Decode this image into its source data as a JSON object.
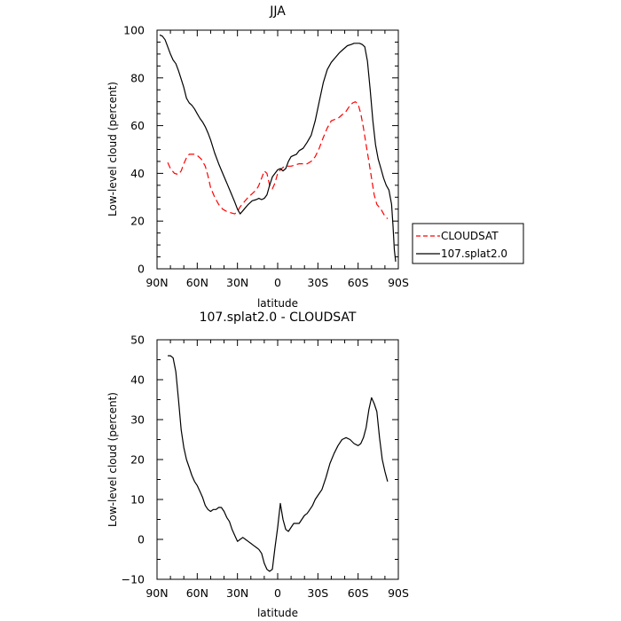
{
  "chart_data": [
    {
      "type": "line",
      "title": "JJA",
      "xlabel": "latitude",
      "ylabel": "Low-level cloud (percent)",
      "xlim": [
        -90,
        90
      ],
      "ylim": [
        0,
        100
      ],
      "x_ticks": [
        -90,
        -60,
        -30,
        0,
        30,
        60,
        90
      ],
      "x_tick_labels": [
        "90N",
        "60N",
        "30N",
        "0",
        "30S",
        "60S",
        "90S"
      ],
      "y_ticks": [
        0,
        20,
        40,
        60,
        80,
        100
      ],
      "y_tick_labels": [
        "0",
        "20",
        "40",
        "60",
        "80",
        "100"
      ],
      "grid": false,
      "legend_position": "right",
      "series": [
        {
          "name": "CLOUDSAT",
          "color": "#ff0000",
          "dash": "dashed",
          "x": [
            -82,
            -80,
            -77,
            -74,
            -72,
            -70,
            -68,
            -66,
            -64,
            -62,
            -60,
            -57,
            -54,
            -52,
            -50,
            -47,
            -44,
            -41,
            -38,
            -35,
            -32,
            -30,
            -28,
            -25,
            -22,
            -19,
            -16,
            -14,
            -12,
            -10,
            -8,
            -6,
            -4,
            -2,
            0,
            2,
            4,
            6,
            8,
            10,
            13,
            16,
            19,
            22,
            25,
            28,
            31,
            34,
            37,
            40,
            42,
            45,
            48,
            51,
            54,
            56,
            58,
            60,
            62,
            64,
            66,
            68,
            70,
            72,
            74,
            77,
            80,
            82
          ],
          "y": [
            44.5,
            42,
            40,
            39.5,
            41,
            44,
            46.5,
            48,
            48,
            48,
            47.5,
            46,
            43,
            39,
            34,
            30,
            27,
            25,
            24,
            23.5,
            23,
            24,
            26,
            28,
            30,
            31.5,
            33,
            35,
            38,
            41,
            40,
            35,
            33.5,
            36,
            40,
            41.5,
            42.5,
            43,
            43,
            43,
            43.5,
            44,
            44,
            44,
            45,
            47,
            50.5,
            55,
            59,
            62,
            62.5,
            63,
            64.5,
            66,
            68.5,
            69.5,
            70,
            69,
            65,
            59,
            52,
            45,
            38,
            31,
            27,
            25,
            22,
            21
          ]
        },
        {
          "name": "107.splat2.0",
          "color": "#000000",
          "dash": "solid",
          "x": [
            -88,
            -86,
            -84,
            -82,
            -80,
            -78,
            -76,
            -74,
            -72,
            -70,
            -68,
            -66,
            -64,
            -62,
            -60,
            -58,
            -56,
            -54,
            -52,
            -50,
            -47,
            -44,
            -41,
            -38,
            -35,
            -32,
            -30,
            -28,
            -25,
            -22,
            -19,
            -16,
            -14,
            -12,
            -10,
            -8,
            -6,
            -4,
            -2,
            0,
            2,
            4,
            6,
            8,
            10,
            12,
            14,
            16,
            19,
            22,
            25,
            28,
            31,
            34,
            37,
            40,
            43,
            46,
            49,
            52,
            55,
            57,
            59,
            61,
            63,
            65,
            67,
            69,
            71,
            73,
            75,
            77,
            79,
            81,
            83,
            85,
            86,
            87,
            88
          ],
          "y": [
            98,
            97.5,
            96,
            93,
            90,
            87.5,
            86,
            83,
            79.5,
            76,
            71.5,
            69.5,
            68.5,
            67,
            65,
            63,
            61.5,
            59.5,
            57,
            54,
            48.5,
            44,
            40,
            36,
            32,
            28,
            25,
            23,
            25,
            27,
            28.5,
            29,
            29.5,
            29,
            29.5,
            31,
            35,
            38.5,
            40,
            41.5,
            42,
            41,
            42,
            45,
            47,
            47.5,
            48,
            49.5,
            50.5,
            53,
            56,
            62,
            70,
            78,
            83.5,
            86.5,
            88.5,
            90.5,
            92,
            93.5,
            94,
            94.5,
            94.5,
            94.5,
            94,
            93,
            87,
            75,
            62,
            52,
            46,
            42,
            38,
            35,
            33,
            27,
            18,
            8,
            3
          ]
        }
      ]
    },
    {
      "type": "line",
      "title": "107.splat2.0 - CLOUDSAT",
      "xlabel": "latitude",
      "ylabel": "Low-level cloud (percent)",
      "xlim": [
        -90,
        90
      ],
      "ylim": [
        -10,
        50
      ],
      "x_ticks": [
        -90,
        -60,
        -30,
        0,
        30,
        60,
        90
      ],
      "x_tick_labels": [
        "90N",
        "60N",
        "30N",
        "0",
        "30S",
        "60S",
        "90S"
      ],
      "y_ticks": [
        -10,
        0,
        10,
        20,
        30,
        40,
        50
      ],
      "y_tick_labels": [
        "−10",
        "0",
        "10",
        "20",
        "30",
        "40",
        "50"
      ],
      "grid": false,
      "series": [
        {
          "color": "#000000",
          "dash": "solid",
          "x": [
            -82,
            -80,
            -78,
            -76,
            -74,
            -72,
            -70,
            -68,
            -66,
            -64,
            -62,
            -60,
            -58,
            -56,
            -54,
            -52,
            -50,
            -48,
            -46,
            -44,
            -42,
            -40,
            -38,
            -36,
            -34,
            -32,
            -30,
            -28,
            -26,
            -24,
            -22,
            -20,
            -18,
            -16,
            -14,
            -12,
            -10,
            -8,
            -6,
            -4,
            -2,
            0,
            2,
            4,
            6,
            8,
            10,
            12,
            14,
            16,
            18,
            20,
            22,
            24,
            26,
            28,
            30,
            33,
            36,
            39,
            42,
            45,
            48,
            51,
            54,
            57,
            60,
            62,
            64,
            66,
            68,
            70,
            72,
            74,
            76,
            78,
            80,
            82
          ],
          "y": [
            46,
            46,
            45.5,
            42,
            35,
            27.5,
            23,
            20,
            18,
            16,
            14.5,
            13.5,
            12,
            10.5,
            8.5,
            7.5,
            7,
            7.5,
            7.5,
            8,
            8,
            7,
            5.5,
            4.5,
            2.5,
            1,
            -0.5,
            0,
            0.5,
            0,
            -0.5,
            -1,
            -1.5,
            -2,
            -2.5,
            -3.5,
            -6,
            -7.5,
            -8,
            -7.5,
            -2,
            3,
            9,
            5,
            2.5,
            2,
            3,
            4,
            4,
            4,
            5,
            6,
            6.5,
            7.5,
            8.5,
            10,
            11,
            12.5,
            15.5,
            19,
            21.5,
            23.5,
            25,
            25.5,
            25,
            24,
            23.5,
            24,
            25.5,
            28,
            32.5,
            35.5,
            34,
            32,
            25.5,
            20,
            17,
            14.5
          ]
        }
      ]
    }
  ]
}
